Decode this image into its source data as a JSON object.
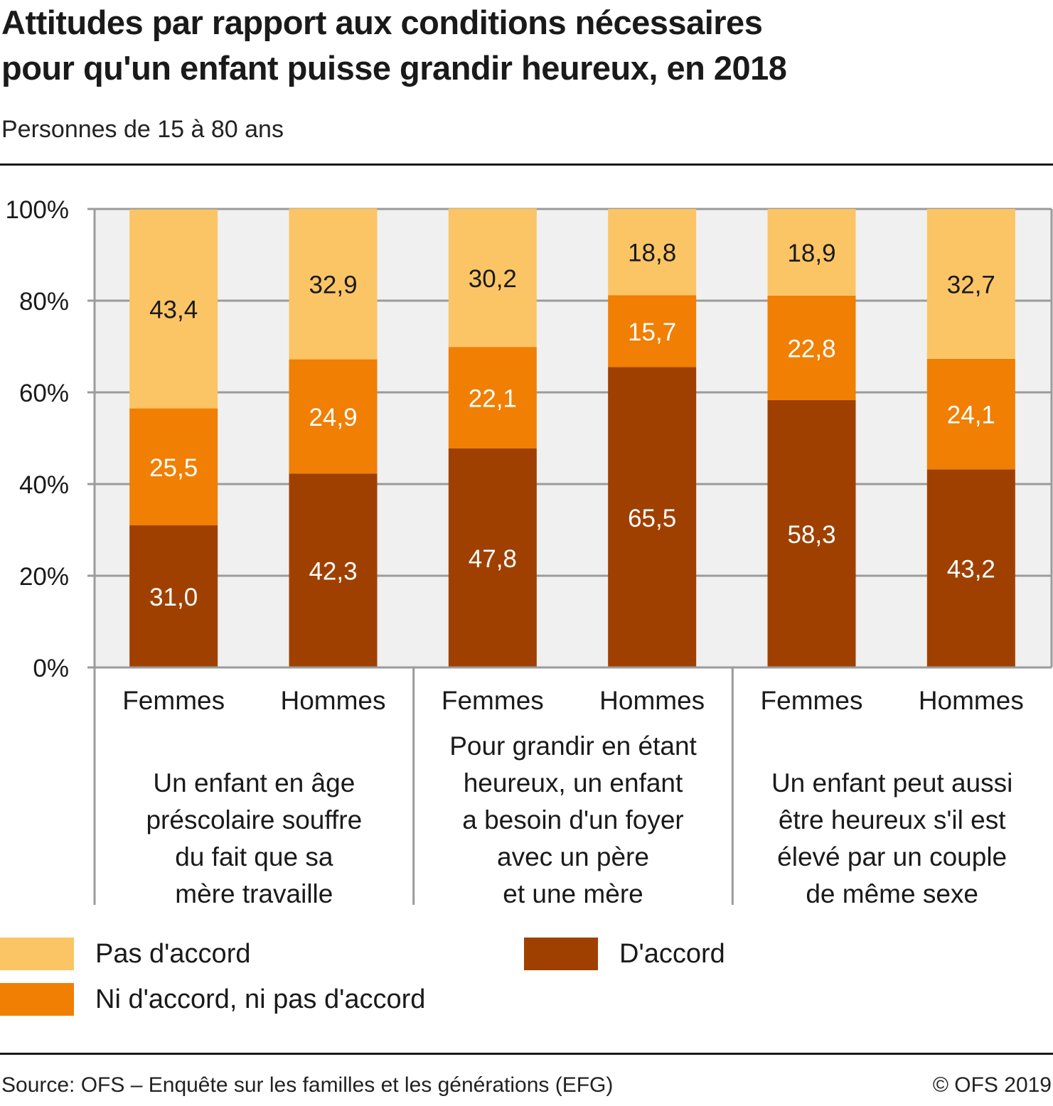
{
  "header": {
    "title_line1": "Attitudes par rapport aux conditions nécessaires",
    "title_line2": "pour qu'un enfant puisse grandir heureux, en 2018",
    "subtitle": "Personnes de 15 à 80 ans"
  },
  "chart_data": {
    "type": "bar",
    "stacked": true,
    "title": "Attitudes par rapport aux conditions nécessaires pour qu'un enfant puisse grandir heureux, en 2018",
    "subtitle": "Personnes de 15 à 80 ans",
    "xlabel": "",
    "ylabel": "",
    "ylim": [
      0,
      100
    ],
    "yticks": [
      "0%",
      "20%",
      "40%",
      "60%",
      "80%",
      "100%"
    ],
    "grid": true,
    "groups": [
      {
        "label_lines": [
          "Un enfant en âge",
          "préscolaire souffre",
          "du fait que sa",
          "mère travaille"
        ],
        "categories": [
          "Femmes",
          "Hommes"
        ]
      },
      {
        "label_lines": [
          "Pour grandir en étant",
          "heureux, un enfant",
          "a besoin d'un foyer",
          "avec un père",
          "et une mère"
        ],
        "categories": [
          "Femmes",
          "Hommes"
        ]
      },
      {
        "label_lines": [
          "Un enfant peut aussi",
          "être heureux s'il est",
          "élevé par un couple",
          "de même sexe"
        ],
        "categories": [
          "Femmes",
          "Hommes"
        ]
      }
    ],
    "categories": [
      "Femmes",
      "Hommes",
      "Femmes",
      "Hommes",
      "Femmes",
      "Hommes"
    ],
    "series": [
      {
        "name": "D'accord",
        "color": "#a04000",
        "label_color": "#ffffff",
        "values": [
          31.0,
          42.3,
          47.8,
          65.5,
          58.3,
          43.2
        ],
        "labels": [
          "31,0",
          "42,3",
          "47,8",
          "65,5",
          "58,3",
          "43,2"
        ]
      },
      {
        "name": "Ni d'accord, ni pas d'accord",
        "color": "#f07f03",
        "label_color": "#ffffff",
        "values": [
          25.5,
          24.9,
          22.1,
          15.7,
          22.8,
          24.1
        ],
        "labels": [
          "25,5",
          "24,9",
          "22,1",
          "15,7",
          "22,8",
          "24,1"
        ]
      },
      {
        "name": "Pas d'accord",
        "color": "#fbc565",
        "label_color": "#1a1a1a",
        "values": [
          43.4,
          32.9,
          30.2,
          18.8,
          18.9,
          32.7
        ],
        "labels": [
          "43,4",
          "32,9",
          "30,2",
          "18,8",
          "18,9",
          "32,7"
        ]
      }
    ],
    "legend": {
      "placement": "bottom",
      "entries": [
        {
          "name": "Pas d'accord",
          "color": "#fbc565"
        },
        {
          "name": "Ni d'accord, ni pas d'accord",
          "color": "#f07f03"
        },
        {
          "name": "D'accord",
          "color": "#a04000"
        }
      ]
    },
    "colors": {
      "plot_background": "#f0f0f0",
      "gridline": "#9b9b9b"
    }
  },
  "footer": {
    "source": "Source: OFS – Enquête sur les familles et les générations (EFG)",
    "copyright": "© OFS 2019"
  }
}
